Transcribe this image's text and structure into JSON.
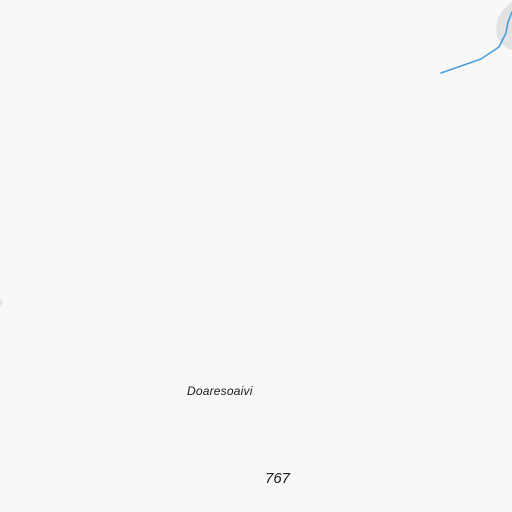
{
  "map": {
    "colors": {
      "land": "#f8f8f8",
      "water": "#4a9fd8",
      "shore_shadow": "#dedede"
    },
    "labels": {
      "place_name": "Doaresoaivi",
      "elevation": "767"
    }
  }
}
